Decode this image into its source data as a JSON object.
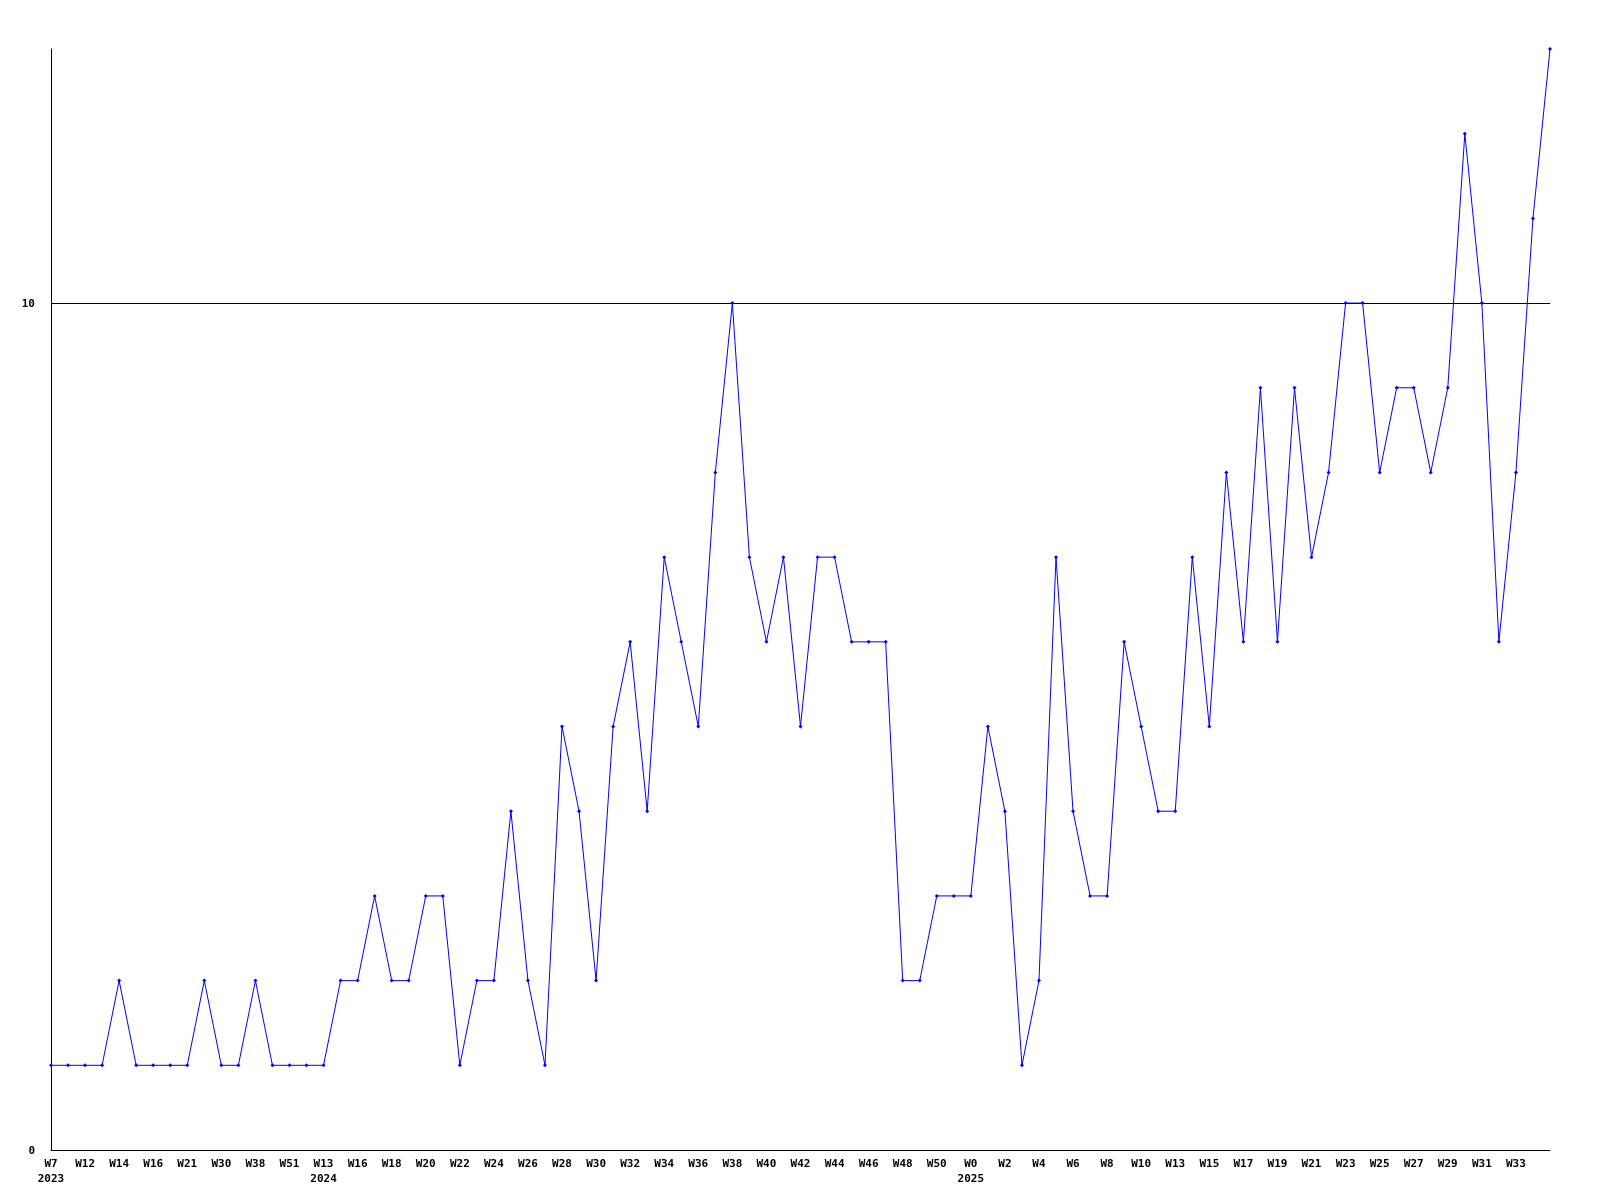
{
  "chart_data": {
    "type": "line",
    "categories": [
      "W7\n2023",
      null,
      "W12",
      null,
      "W14",
      null,
      "W16",
      null,
      "W21",
      null,
      "W30",
      null,
      "W38",
      null,
      "W51",
      null,
      "W13\n2024",
      null,
      "W16",
      null,
      "W18",
      null,
      "W20",
      null,
      "W22",
      null,
      "W24",
      null,
      "W26",
      null,
      "W28",
      null,
      "W30",
      null,
      "W32",
      null,
      "W34",
      null,
      "W36",
      null,
      "W38",
      null,
      "W40",
      null,
      "W42",
      null,
      "W44",
      null,
      "W46",
      null,
      "W48",
      null,
      "W50",
      null,
      "W0\n2025",
      null,
      "W2",
      null,
      "W4",
      null,
      "W6",
      null,
      "W8",
      null,
      "W10",
      null,
      "W13",
      null,
      "W15",
      null,
      "W17",
      null,
      "W19",
      null,
      "W21",
      null,
      "W23",
      null,
      "W25",
      null,
      "W27",
      null,
      "W29",
      null,
      "W31",
      null,
      "W33",
      null,
      null
    ],
    "series": [
      {
        "color": "#0000ff",
        "values": [
          1,
          1,
          1,
          1,
          2,
          1,
          1,
          1,
          1,
          2,
          1,
          1,
          2,
          1,
          1,
          1,
          1,
          2,
          2,
          3,
          2,
          2,
          3,
          3,
          1,
          2,
          2,
          4,
          2,
          1,
          5,
          4,
          2,
          5,
          6,
          4,
          7,
          6,
          5,
          8,
          10,
          7,
          6,
          7,
          5,
          7,
          7,
          6,
          6,
          6,
          2,
          2,
          3,
          3,
          3,
          5,
          4,
          1,
          2,
          7,
          4,
          3,
          3,
          6,
          5,
          4,
          4,
          7,
          5,
          8,
          6,
          9,
          6,
          9,
          7,
          8,
          10,
          10,
          8,
          9,
          9,
          8,
          9,
          12,
          10,
          6,
          8,
          11,
          13
        ]
      }
    ],
    "ylim": [
      0,
      13
    ],
    "yticks": [
      0,
      10
    ],
    "grid": "y",
    "marker": "diamond",
    "line_style": "solid"
  }
}
